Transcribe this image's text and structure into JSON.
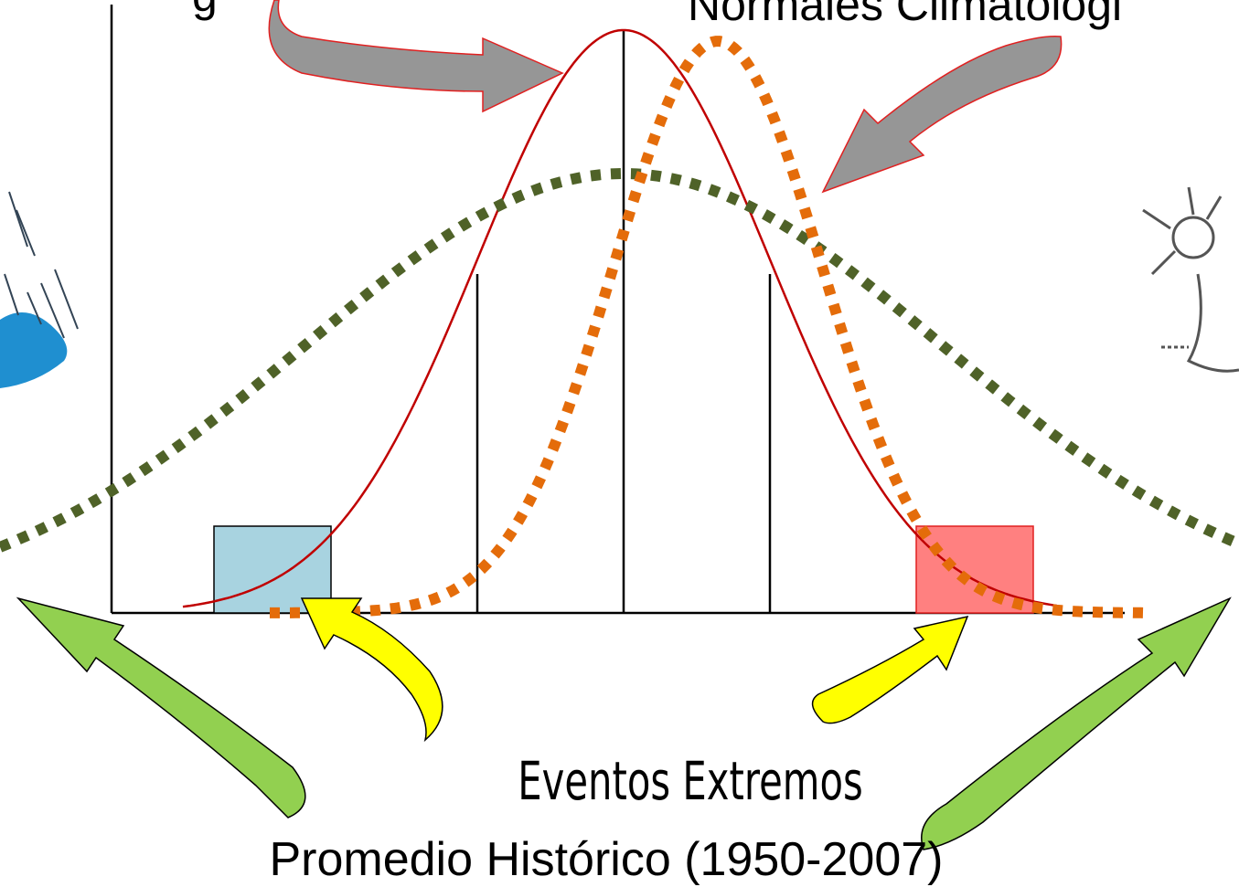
{
  "header": {
    "fragment": "g",
    "title": "Normales Climatológi"
  },
  "labels": {
    "extremes": "Eventos Extremos",
    "historical": "Promedio Histórico (1950-2007)"
  }
}
